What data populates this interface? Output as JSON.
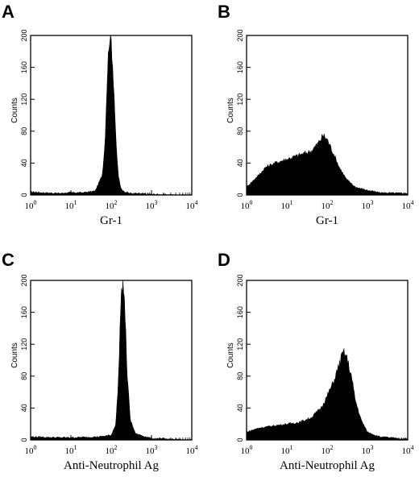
{
  "chart_data": [
    {
      "type": "area",
      "panel": "A",
      "xlabel": "Gr-1",
      "ylabel": "Counts",
      "xscale": "log",
      "xlim": [
        1,
        10000
      ],
      "ylim": [
        0,
        200
      ],
      "yticks": [
        0,
        40,
        80,
        120,
        160,
        200
      ],
      "xticks": [
        {
          "base": "10",
          "exp": "0"
        },
        {
          "base": "10",
          "exp": "1"
        },
        {
          "base": "10",
          "exp": "2"
        },
        {
          "base": "10",
          "exp": "3"
        },
        {
          "base": "10",
          "exp": "4"
        }
      ],
      "x": [
        1,
        2,
        5,
        10,
        20,
        40,
        60,
        70,
        80,
        90,
        100,
        110,
        120,
        130,
        150,
        170,
        200,
        300,
        1000,
        10000
      ],
      "y": [
        4,
        3,
        2,
        3,
        3,
        5,
        25,
        65,
        150,
        200,
        195,
        160,
        120,
        70,
        25,
        10,
        5,
        2,
        1,
        0
      ]
    },
    {
      "type": "area",
      "panel": "B",
      "xlabel": "Gr-1",
      "ylabel": "Counts",
      "xscale": "log",
      "xlim": [
        1,
        10000
      ],
      "ylim": [
        0,
        200
      ],
      "yticks": [
        0,
        40,
        80,
        120,
        160,
        200
      ],
      "xticks": [
        {
          "base": "10",
          "exp": "0"
        },
        {
          "base": "10",
          "exp": "1"
        },
        {
          "base": "10",
          "exp": "2"
        },
        {
          "base": "10",
          "exp": "3"
        },
        {
          "base": "10",
          "exp": "4"
        }
      ],
      "x": [
        1,
        2,
        3,
        5,
        10,
        20,
        40,
        60,
        80,
        100,
        150,
        200,
        300,
        500,
        1000,
        2000,
        10000
      ],
      "y": [
        10,
        25,
        35,
        40,
        45,
        50,
        55,
        65,
        75,
        70,
        50,
        35,
        20,
        10,
        6,
        3,
        2
      ]
    },
    {
      "type": "area",
      "panel": "C",
      "xlabel": "Anti-Neutrophil Ag",
      "ylabel": "Counts",
      "xscale": "log",
      "xlim": [
        1,
        10000
      ],
      "ylim": [
        0,
        200
      ],
      "yticks": [
        0,
        40,
        80,
        120,
        160,
        200
      ],
      "xticks": [
        {
          "base": "10",
          "exp": "0"
        },
        {
          "base": "10",
          "exp": "1"
        },
        {
          "base": "10",
          "exp": "2"
        },
        {
          "base": "10",
          "exp": "3"
        },
        {
          "base": "10",
          "exp": "4"
        }
      ],
      "x": [
        1,
        5,
        10,
        50,
        100,
        130,
        150,
        170,
        190,
        200,
        220,
        250,
        300,
        400,
        1000,
        10000
      ],
      "y": [
        4,
        3,
        3,
        4,
        6,
        20,
        70,
        160,
        200,
        200,
        160,
        80,
        25,
        8,
        2,
        0
      ]
    },
    {
      "type": "area",
      "panel": "D",
      "xlabel": "Anti-Neutrophil Ag",
      "ylabel": "Counts",
      "xscale": "log",
      "xlim": [
        1,
        10000
      ],
      "ylim": [
        0,
        200
      ],
      "yticks": [
        0,
        40,
        80,
        120,
        160,
        200
      ],
      "xticks": [
        {
          "base": "10",
          "exp": "0"
        },
        {
          "base": "10",
          "exp": "1"
        },
        {
          "base": "10",
          "exp": "2"
        },
        {
          "base": "10",
          "exp": "3"
        },
        {
          "base": "10",
          "exp": "4"
        }
      ],
      "x": [
        1,
        2,
        5,
        10,
        20,
        40,
        70,
        100,
        150,
        200,
        250,
        300,
        400,
        500,
        700,
        1000,
        2000,
        10000
      ],
      "y": [
        10,
        15,
        18,
        20,
        22,
        28,
        40,
        55,
        75,
        95,
        110,
        105,
        80,
        50,
        25,
        10,
        4,
        1
      ]
    }
  ]
}
